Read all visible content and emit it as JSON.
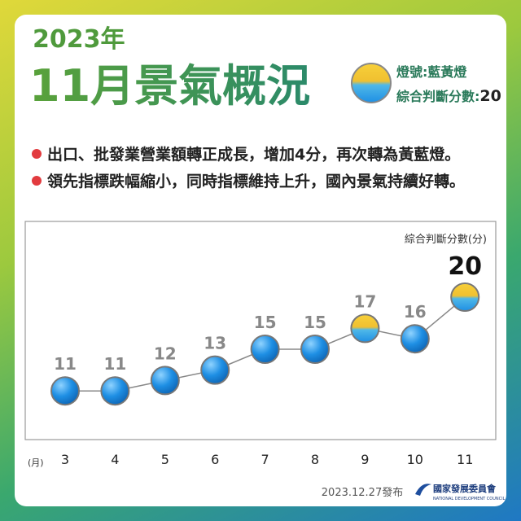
{
  "header": {
    "year": "2023年",
    "title": "11月景氣概況",
    "signal": "燈號:藍黃燈",
    "score_label": "綜合判斷分數:",
    "score_value": 20
  },
  "bullets": [
    "出口、批發業營業額轉正成長，增加4分，再次轉為黃藍燈。",
    "領先指標跌幅縮小，同時指標維持上升，國內景氣持續好轉。"
  ],
  "chart_data": {
    "type": "line",
    "y_label": "綜合判斷分數(分)",
    "x_label": "(月)",
    "categories": [
      "3",
      "4",
      "5",
      "6",
      "7",
      "8",
      "9",
      "10",
      "11"
    ],
    "values": [
      11,
      11,
      12,
      13,
      15,
      15,
      17,
      16,
      20
    ],
    "point_colors": [
      "#1e8fe4",
      "#1e8fe4",
      "#1e8fe4",
      "#1e8fe4",
      "#1e8fe4",
      "#1e8fe4",
      "#f3c52c",
      "#1e8fe4",
      "#f3c52c"
    ],
    "line_color": "#888888",
    "ylim": [
      5,
      25
    ]
  },
  "footer": {
    "date": "2023.12.27發布",
    "org": "國家發展委員會",
    "org_en": "NATIONAL DEVELOPMENT COUNCIL"
  }
}
